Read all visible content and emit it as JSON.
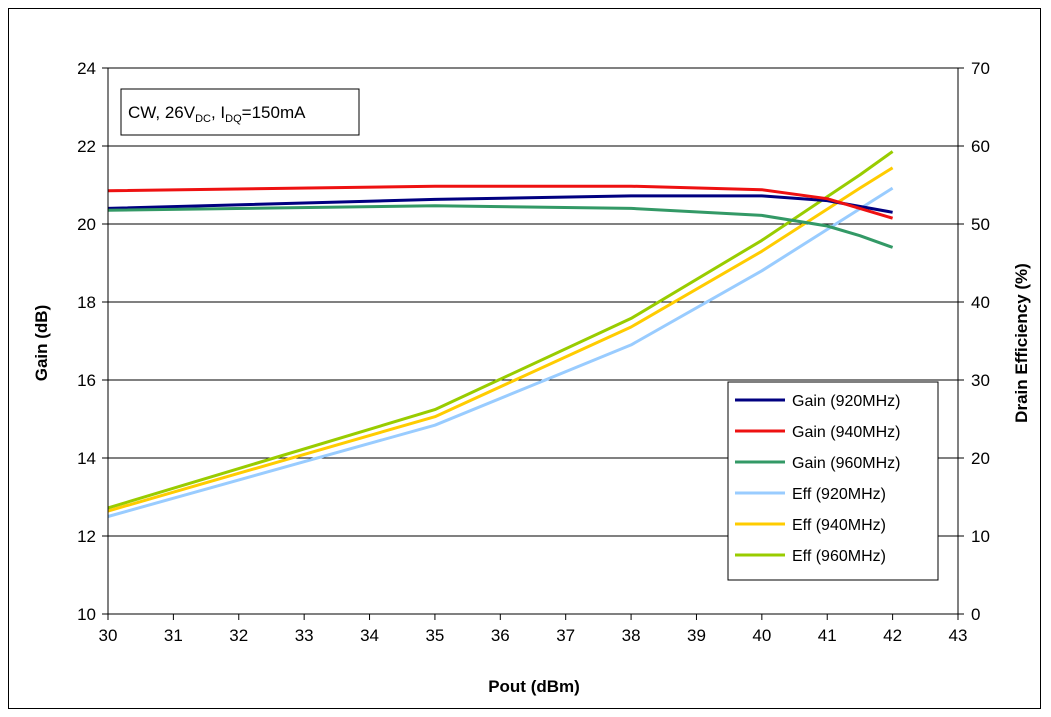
{
  "chart_data": {
    "type": "line",
    "annotation": {
      "prefix": "CW, 26V",
      "sub1": "DC",
      "mid": ", I",
      "sub2": "DQ",
      "suffix": "=150mA"
    },
    "xlabel": "Pout (dBm)",
    "ylabel": "Gain (dB)",
    "y2label": "Drain Efficiency (%)",
    "xlim": [
      30,
      43
    ],
    "ylim": [
      10,
      24
    ],
    "y2lim": [
      0,
      70
    ],
    "xticks": [
      "30",
      "31",
      "32",
      "33",
      "34",
      "35",
      "36",
      "37",
      "38",
      "39",
      "40",
      "41",
      "42",
      "43"
    ],
    "yticks": [
      "10",
      "12",
      "14",
      "16",
      "18",
      "20",
      "22",
      "24"
    ],
    "y2ticks": [
      "0",
      "10",
      "20",
      "30",
      "40",
      "50",
      "60",
      "70"
    ],
    "grid": "horizontal",
    "legend_position": "bottom-right",
    "series": [
      {
        "name": "Gain (920MHz)",
        "axis": "left",
        "color": "#000080",
        "x": [
          30,
          35,
          38,
          40,
          41,
          42
        ],
        "y": [
          20.4,
          20.63,
          20.72,
          20.72,
          20.6,
          20.3
        ]
      },
      {
        "name": "Gain (940MHz)",
        "axis": "left",
        "color": "#ee1111",
        "x": [
          30,
          35,
          38,
          40,
          41,
          42
        ],
        "y": [
          20.85,
          20.97,
          20.97,
          20.88,
          20.65,
          20.15
        ]
      },
      {
        "name": "Gain (960MHz)",
        "axis": "left",
        "color": "#339966",
        "x": [
          30,
          35,
          38,
          40,
          41,
          41.5,
          42
        ],
        "y": [
          20.35,
          20.47,
          20.4,
          20.22,
          19.95,
          19.7,
          19.4
        ]
      },
      {
        "name": "Eff (920MHz)",
        "axis": "right",
        "color": "#99ccff",
        "x": [
          30,
          35,
          38,
          40,
          42
        ],
        "y": [
          12.5,
          24.2,
          34.5,
          44.0,
          54.6
        ]
      },
      {
        "name": "Eff (940MHz)",
        "axis": "right",
        "color": "#ffcc00",
        "x": [
          30,
          35,
          38,
          40,
          41.5,
          42
        ],
        "y": [
          13.2,
          25.3,
          36.8,
          46.5,
          54.6,
          57.2
        ]
      },
      {
        "name": "Eff (960MHz)",
        "axis": "right",
        "color": "#99cc00",
        "x": [
          30,
          35,
          38,
          40,
          41.5,
          42
        ],
        "y": [
          13.6,
          26.2,
          37.9,
          47.9,
          56.3,
          59.3
        ]
      }
    ]
  }
}
